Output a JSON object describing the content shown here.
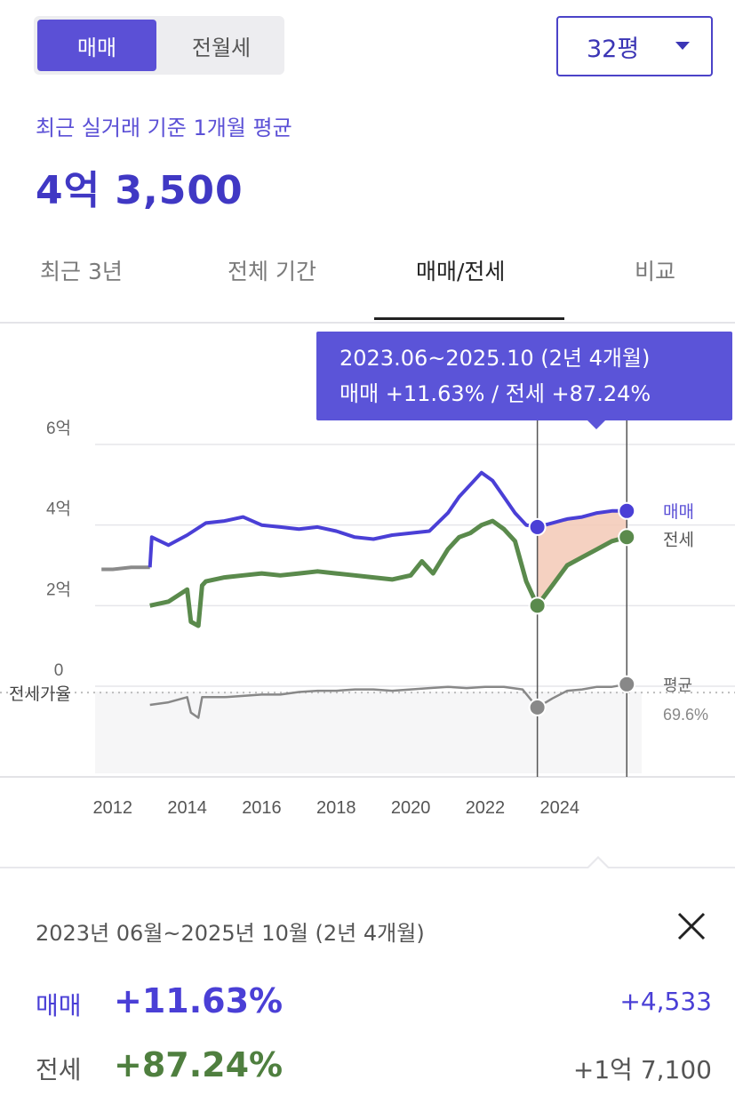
{
  "tabs_type": {
    "active": "매매",
    "inactive": "전월세"
  },
  "size": {
    "label": "32평"
  },
  "summary": {
    "subtitle": "최근 실거래 기준 1개월 평균",
    "price": "4억 3,500"
  },
  "period_tabs": [
    "최근 3년",
    "전체 기간",
    "매매/전세",
    "비교"
  ],
  "active_period_tab": "매매/전세",
  "tooltip": {
    "line1": "2023.06~2025.10 (2년 4개월)",
    "line2": "매매 +11.63%  /  전세 +87.24%"
  },
  "colors": {
    "sale": "#4a3fd6",
    "jeonse": "#5a8a4c",
    "ratio": "#888888",
    "accent": "#5b54d8",
    "fill": "#f3c9b6"
  },
  "chart_data": {
    "type": "line",
    "y_tick_labels": [
      "6억",
      "4억",
      "2억",
      "0"
    ],
    "ylim": [
      0,
      6
    ],
    "x_tick_labels": [
      "2012",
      "2014",
      "2016",
      "2018",
      "2020",
      "2022",
      "2024"
    ],
    "xlim": [
      2011.6,
      2026.2
    ],
    "series": [
      {
        "name": "매매",
        "x": [
          2011.7,
          2012.0,
          2012.5,
          2013.0,
          2013.05,
          2013.5,
          2014.0,
          2014.5,
          2015.0,
          2015.5,
          2016.0,
          2016.5,
          2017.0,
          2017.5,
          2018.0,
          2018.5,
          2019.0,
          2019.5,
          2020.0,
          2020.5,
          2021.0,
          2021.3,
          2021.6,
          2021.9,
          2022.2,
          2022.5,
          2022.8,
          2023.1,
          2023.4,
          2023.8,
          2024.2,
          2024.6,
          2025.0,
          2025.4,
          2025.8
        ],
        "values": [
          2.9,
          2.9,
          2.95,
          2.95,
          3.7,
          3.5,
          3.75,
          4.05,
          4.1,
          4.2,
          4.0,
          3.95,
          3.9,
          3.95,
          3.85,
          3.7,
          3.65,
          3.75,
          3.8,
          3.85,
          4.3,
          4.7,
          5.0,
          5.3,
          5.1,
          4.7,
          4.3,
          4.0,
          3.95,
          4.05,
          4.15,
          4.2,
          4.3,
          4.35,
          4.35
        ]
      },
      {
        "name": "전세",
        "x": [
          2013.0,
          2013.5,
          2014.0,
          2014.1,
          2014.3,
          2014.4,
          2014.5,
          2015.0,
          2015.5,
          2016.0,
          2016.5,
          2017.0,
          2017.5,
          2018.0,
          2018.5,
          2019.0,
          2019.5,
          2020.0,
          2020.3,
          2020.6,
          2021.0,
          2021.3,
          2021.6,
          2021.9,
          2022.2,
          2022.5,
          2022.8,
          2023.1,
          2023.4,
          2023.8,
          2024.2,
          2024.6,
          2025.0,
          2025.4,
          2025.8
        ],
        "values": [
          2.0,
          2.1,
          2.4,
          1.6,
          1.5,
          2.5,
          2.6,
          2.7,
          2.75,
          2.8,
          2.75,
          2.8,
          2.85,
          2.8,
          2.75,
          2.7,
          2.65,
          2.75,
          3.1,
          2.8,
          3.4,
          3.7,
          3.8,
          4.0,
          4.1,
          3.9,
          3.6,
          2.6,
          2.0,
          2.5,
          3.0,
          3.2,
          3.4,
          3.6,
          3.7
        ]
      }
    ],
    "ratio_series": {
      "name": "전세가율",
      "x": [
        2013.0,
        2013.5,
        2014.0,
        2014.1,
        2014.3,
        2014.4,
        2014.5,
        2015.0,
        2015.5,
        2016.0,
        2016.5,
        2017.0,
        2017.5,
        2018.0,
        2018.5,
        2019.0,
        2019.5,
        2020.0,
        2020.5,
        2021.0,
        2021.5,
        2022.0,
        2022.5,
        2023.0,
        2023.4,
        2023.8,
        2024.2,
        2024.6,
        2025.0,
        2025.4,
        2025.8
      ],
      "values": [
        60,
        62,
        66,
        54,
        50,
        66,
        66,
        66,
        67,
        68,
        68,
        70,
        71,
        71,
        72,
        72,
        71,
        72,
        73,
        74,
        73,
        74,
        74,
        72,
        58,
        65,
        71,
        72,
        74,
        74,
        76
      ]
    },
    "ratio_label": "전세가율",
    "average_label": "평균",
    "average_value": "69.6%",
    "range": {
      "start": 2023.4,
      "end": 2025.8
    }
  },
  "detail": {
    "period": "2023년 06월~2025년 10월 (2년 4개월)",
    "sale": {
      "label": "매매",
      "pct": "+11.63%",
      "amount": "+4,533"
    },
    "jeonse": {
      "label": "전세",
      "pct": "+87.24%",
      "amount": "+1억 7,100"
    }
  }
}
